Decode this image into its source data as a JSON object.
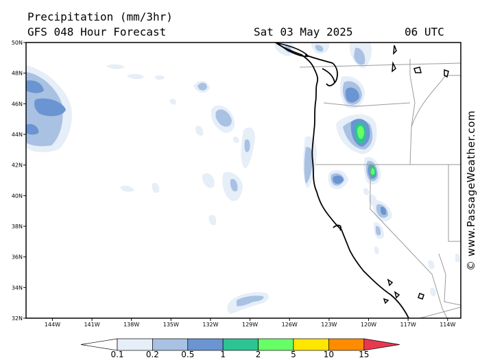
{
  "header": {
    "title": "Precipitation (mm/3hr)",
    "model": "GFS 048 Hour Forecast",
    "valid_date": "Sat 03 May 2025",
    "valid_time": "06 UTC"
  },
  "watermark": "© www.PassageWeather.com",
  "map": {
    "lat_labels": [
      "50N",
      "48N",
      "46N",
      "44N",
      "42N",
      "40N",
      "38N",
      "36N",
      "34N",
      "32N"
    ],
    "lon_labels": [
      "144W",
      "141W",
      "138W",
      "135W",
      "132W",
      "129W",
      "126W",
      "123W",
      "120W",
      "117W",
      "114W"
    ],
    "lat_range": [
      32,
      50
    ],
    "lon_range": [
      -146,
      -113
    ]
  },
  "legend": {
    "labels": [
      "0.1",
      "0.2",
      "0.5",
      "1",
      "2",
      "5",
      "10",
      "15"
    ],
    "colors": [
      "#ffffff",
      "#e6eef8",
      "#a9c1e2",
      "#6a95d2",
      "#2ec392",
      "#66ff66",
      "#ffe600",
      "#ff8c00",
      "#e8384f"
    ]
  }
}
